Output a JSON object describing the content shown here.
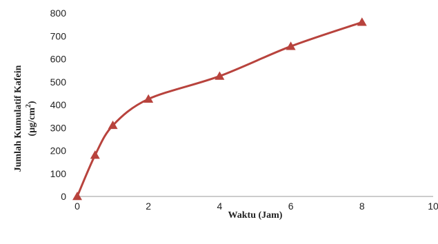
{
  "chart_data": {
    "type": "line",
    "title": "",
    "xlabel": "Waktu (Jam)",
    "ylabel_line1": "Jumlah Kumulatif Kafein",
    "ylabel_line2": "(µg/cm",
    "ylabel_sup": "2",
    "ylabel_close": ")",
    "xlim": [
      0,
      10
    ],
    "ylim": [
      0,
      800
    ],
    "x_ticks": [
      "0",
      "2",
      "4",
      "6",
      "8",
      "10"
    ],
    "y_ticks": [
      "0",
      "100",
      "200",
      "300",
      "400",
      "500",
      "600",
      "700",
      "800"
    ],
    "grid": false,
    "legend": "none",
    "series": [
      {
        "color": "#b8433d",
        "marker": "triangle",
        "x": [
          0,
          0.5,
          1,
          2,
          4,
          6,
          8
        ],
        "y": [
          0,
          180,
          310,
          425,
          525,
          655,
          760
        ]
      }
    ]
  }
}
